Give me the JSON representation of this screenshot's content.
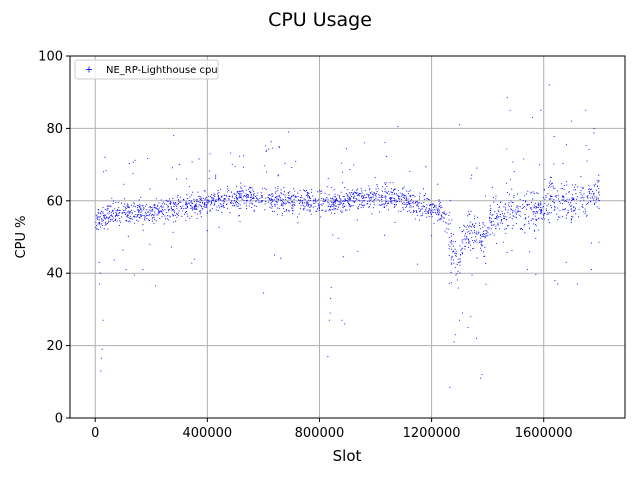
{
  "chart_data": {
    "type": "scatter",
    "title": "CPU Usage",
    "xlabel": "Slot",
    "ylabel": "CPU %",
    "xlim": [
      -90000,
      1890000
    ],
    "ylim": [
      0,
      100
    ],
    "xticks": [
      0,
      400000,
      800000,
      1200000,
      1600000
    ],
    "xtick_labels": [
      "0",
      "400000",
      "800000",
      "1200000",
      "1600000"
    ],
    "yticks": [
      0,
      20,
      40,
      60,
      80,
      100
    ],
    "ytick_labels": [
      "0",
      "20",
      "40",
      "60",
      "80",
      "100"
    ],
    "grid": true,
    "legend": {
      "position": "top-left",
      "entries": [
        "NE_RP-Lighthouse cpu"
      ]
    },
    "marker_color": "#0000ff",
    "series": [
      {
        "name": "NE_RP-Lighthouse cpu",
        "trend": [
          [
            0,
            55
          ],
          [
            50000,
            56
          ],
          [
            100000,
            56.5
          ],
          [
            150000,
            57
          ],
          [
            200000,
            56.5
          ],
          [
            250000,
            57.5
          ],
          [
            300000,
            58
          ],
          [
            350000,
            59
          ],
          [
            400000,
            59.5
          ],
          [
            450000,
            60
          ],
          [
            500000,
            60.5
          ],
          [
            550000,
            61
          ],
          [
            600000,
            60.5
          ],
          [
            650000,
            60
          ],
          [
            700000,
            60
          ],
          [
            750000,
            60
          ],
          [
            800000,
            59.5
          ],
          [
            850000,
            59.5
          ],
          [
            900000,
            60.5
          ],
          [
            950000,
            61
          ],
          [
            1000000,
            61
          ],
          [
            1050000,
            60.5
          ],
          [
            1100000,
            60
          ],
          [
            1150000,
            58.5
          ],
          [
            1200000,
            58
          ],
          [
            1230000,
            57.5
          ],
          [
            1250000,
            55
          ],
          [
            1270000,
            48
          ],
          [
            1290000,
            42
          ],
          [
            1310000,
            47
          ],
          [
            1330000,
            51
          ],
          [
            1360000,
            51
          ],
          [
            1390000,
            49
          ],
          [
            1410000,
            54
          ],
          [
            1450000,
            56
          ],
          [
            1500000,
            56.5
          ],
          [
            1550000,
            57
          ],
          [
            1600000,
            58
          ],
          [
            1620000,
            61
          ],
          [
            1650000,
            60
          ],
          [
            1700000,
            59
          ],
          [
            1750000,
            61
          ],
          [
            1780000,
            63
          ],
          [
            1800000,
            62
          ]
        ],
        "outliers": [
          [
            20000,
            13
          ],
          [
            22000,
            16.5
          ],
          [
            25000,
            19
          ],
          [
            28000,
            27
          ],
          [
            15000,
            37
          ],
          [
            18000,
            40
          ],
          [
            30000,
            68
          ],
          [
            35000,
            72
          ],
          [
            110000,
            41
          ],
          [
            140000,
            39.5
          ],
          [
            170000,
            41
          ],
          [
            195000,
            48
          ],
          [
            215000,
            36.5
          ],
          [
            280000,
            78
          ],
          [
            300000,
            70
          ],
          [
            600000,
            34.5
          ],
          [
            640000,
            45
          ],
          [
            690000,
            79
          ],
          [
            830000,
            17
          ],
          [
            835000,
            27
          ],
          [
            838000,
            29
          ],
          [
            840000,
            33
          ],
          [
            842000,
            36
          ],
          [
            880000,
            27
          ],
          [
            890000,
            26
          ],
          [
            960000,
            76
          ],
          [
            1080000,
            80.5
          ],
          [
            1150000,
            42.5
          ],
          [
            1265000,
            8.5
          ],
          [
            1280000,
            21
          ],
          [
            1285000,
            23
          ],
          [
            1300000,
            27
          ],
          [
            1310000,
            29
          ],
          [
            1330000,
            25
          ],
          [
            1340000,
            28
          ],
          [
            1360000,
            22
          ],
          [
            1375000,
            11
          ],
          [
            1380000,
            12
          ],
          [
            1300000,
            81
          ],
          [
            1470000,
            88.5
          ],
          [
            1480000,
            85
          ],
          [
            1560000,
            83
          ],
          [
            1590000,
            85
          ],
          [
            1620000,
            92
          ],
          [
            1640000,
            38
          ],
          [
            1650000,
            37
          ],
          [
            1680000,
            43
          ],
          [
            1700000,
            82
          ],
          [
            1720000,
            37
          ],
          [
            1750000,
            85
          ],
          [
            1770000,
            41
          ],
          [
            1780000,
            80
          ]
        ]
      }
    ]
  }
}
